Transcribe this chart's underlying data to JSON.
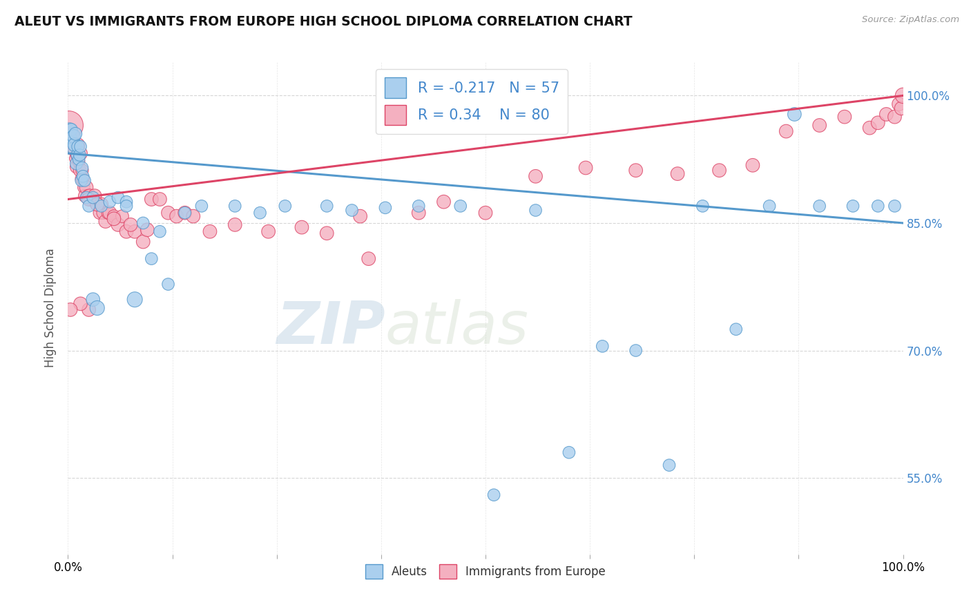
{
  "title": "ALEUT VS IMMIGRANTS FROM EUROPE HIGH SCHOOL DIPLOMA CORRELATION CHART",
  "source": "Source: ZipAtlas.com",
  "ylabel": "High School Diploma",
  "legend_label_1": "Aleuts",
  "legend_label_2": "Immigrants from Europe",
  "R1": -0.217,
  "N1": 57,
  "R2": 0.34,
  "N2": 80,
  "color1": "#aacfee",
  "color2": "#f4b0c0",
  "line_color1": "#5599cc",
  "line_color2": "#dd4466",
  "xlim": [
    0.0,
    1.0
  ],
  "ylim": [
    0.46,
    1.04
  ],
  "yticks": [
    0.55,
    0.7,
    0.85,
    1.0
  ],
  "ytick_labels": [
    "55.0%",
    "70.0%",
    "85.0%",
    "100.0%"
  ],
  "watermark_part1": "ZIP",
  "watermark_part2": "atlas",
  "aleut_x": [
    0.002,
    0.003,
    0.004,
    0.005,
    0.006,
    0.007,
    0.008,
    0.009,
    0.01,
    0.011,
    0.012,
    0.013,
    0.014,
    0.015,
    0.016,
    0.017,
    0.018,
    0.02,
    0.022,
    0.025,
    0.03,
    0.035,
    0.04,
    0.05,
    0.06,
    0.07,
    0.08,
    0.09,
    0.1,
    0.11,
    0.12,
    0.14,
    0.16,
    0.2,
    0.23,
    0.26,
    0.31,
    0.34,
    0.38,
    0.42,
    0.47,
    0.51,
    0.56,
    0.6,
    0.64,
    0.68,
    0.72,
    0.76,
    0.8,
    0.84,
    0.87,
    0.9,
    0.94,
    0.97,
    0.99,
    0.03,
    0.07
  ],
  "aleut_y": [
    0.96,
    0.95,
    0.96,
    0.945,
    0.938,
    0.952,
    0.942,
    0.955,
    0.92,
    0.93,
    0.94,
    0.925,
    0.93,
    0.94,
    0.9,
    0.915,
    0.905,
    0.9,
    0.88,
    0.87,
    0.76,
    0.75,
    0.87,
    0.875,
    0.88,
    0.875,
    0.76,
    0.85,
    0.808,
    0.84,
    0.778,
    0.862,
    0.87,
    0.87,
    0.862,
    0.87,
    0.87,
    0.865,
    0.868,
    0.87,
    0.87,
    0.53,
    0.865,
    0.58,
    0.705,
    0.7,
    0.565,
    0.87,
    0.725,
    0.87,
    0.978,
    0.87,
    0.87,
    0.87,
    0.87,
    0.88,
    0.87
  ],
  "aleut_size": [
    200,
    170,
    170,
    160,
    160,
    200,
    200,
    180,
    170,
    160,
    170,
    160,
    160,
    160,
    160,
    160,
    160,
    160,
    160,
    160,
    200,
    230,
    160,
    160,
    160,
    160,
    250,
    160,
    160,
    160,
    160,
    160,
    160,
    160,
    160,
    160,
    160,
    160,
    160,
    160,
    160,
    160,
    160,
    160,
    160,
    160,
    160,
    160,
    160,
    160,
    200,
    160,
    160,
    160,
    160,
    160,
    160
  ],
  "immig_x": [
    0.001,
    0.002,
    0.003,
    0.004,
    0.005,
    0.006,
    0.007,
    0.008,
    0.009,
    0.01,
    0.011,
    0.012,
    0.013,
    0.014,
    0.015,
    0.016,
    0.017,
    0.018,
    0.019,
    0.02,
    0.022,
    0.024,
    0.026,
    0.028,
    0.03,
    0.032,
    0.035,
    0.038,
    0.04,
    0.042,
    0.045,
    0.048,
    0.05,
    0.055,
    0.06,
    0.065,
    0.07,
    0.08,
    0.09,
    0.1,
    0.11,
    0.12,
    0.13,
    0.14,
    0.15,
    0.17,
    0.2,
    0.24,
    0.28,
    0.31,
    0.35,
    0.36,
    0.42,
    0.45,
    0.5,
    0.56,
    0.62,
    0.68,
    0.73,
    0.78,
    0.82,
    0.86,
    0.9,
    0.93,
    0.96,
    0.97,
    0.98,
    0.99,
    0.995,
    0.998,
    1.0,
    0.025,
    0.035,
    0.055,
    0.075,
    0.095,
    0.025,
    0.015,
    0.003,
    0.001
  ],
  "immig_y": [
    0.965,
    0.955,
    0.948,
    0.945,
    0.938,
    0.952,
    0.942,
    0.936,
    0.926,
    0.916,
    0.93,
    0.942,
    0.922,
    0.912,
    0.932,
    0.902,
    0.912,
    0.902,
    0.892,
    0.882,
    0.892,
    0.882,
    0.882,
    0.878,
    0.878,
    0.882,
    0.872,
    0.862,
    0.872,
    0.862,
    0.852,
    0.862,
    0.862,
    0.858,
    0.848,
    0.858,
    0.84,
    0.84,
    0.828,
    0.878,
    0.878,
    0.862,
    0.858,
    0.862,
    0.858,
    0.84,
    0.848,
    0.84,
    0.845,
    0.838,
    0.858,
    0.808,
    0.862,
    0.875,
    0.862,
    0.905,
    0.915,
    0.912,
    0.908,
    0.912,
    0.918,
    0.958,
    0.965,
    0.975,
    0.962,
    0.968,
    0.978,
    0.975,
    0.99,
    0.985,
    1.0,
    0.878,
    0.872,
    0.855,
    0.848,
    0.842,
    0.748,
    0.755,
    0.748,
    0.958
  ],
  "immig_size": [
    900,
    200,
    180,
    170,
    200,
    180,
    200,
    170,
    160,
    170,
    180,
    200,
    160,
    170,
    200,
    160,
    170,
    170,
    160,
    170,
    200,
    170,
    200,
    200,
    180,
    200,
    200,
    180,
    200,
    180,
    200,
    180,
    200,
    180,
    200,
    180,
    200,
    200,
    200,
    200,
    200,
    200,
    200,
    200,
    200,
    200,
    200,
    200,
    200,
    200,
    200,
    200,
    200,
    200,
    200,
    200,
    200,
    200,
    200,
    200,
    200,
    200,
    200,
    200,
    200,
    200,
    200,
    200,
    200,
    200,
    260,
    200,
    200,
    200,
    200,
    200,
    200,
    200,
    200,
    200
  ],
  "trend_blue_x0": 0.0,
  "trend_blue_y0": 0.932,
  "trend_blue_x1": 1.0,
  "trend_blue_y1": 0.85,
  "trend_pink_x0": 0.0,
  "trend_pink_y0": 0.878,
  "trend_pink_x1": 1.0,
  "trend_pink_y1": 1.0
}
